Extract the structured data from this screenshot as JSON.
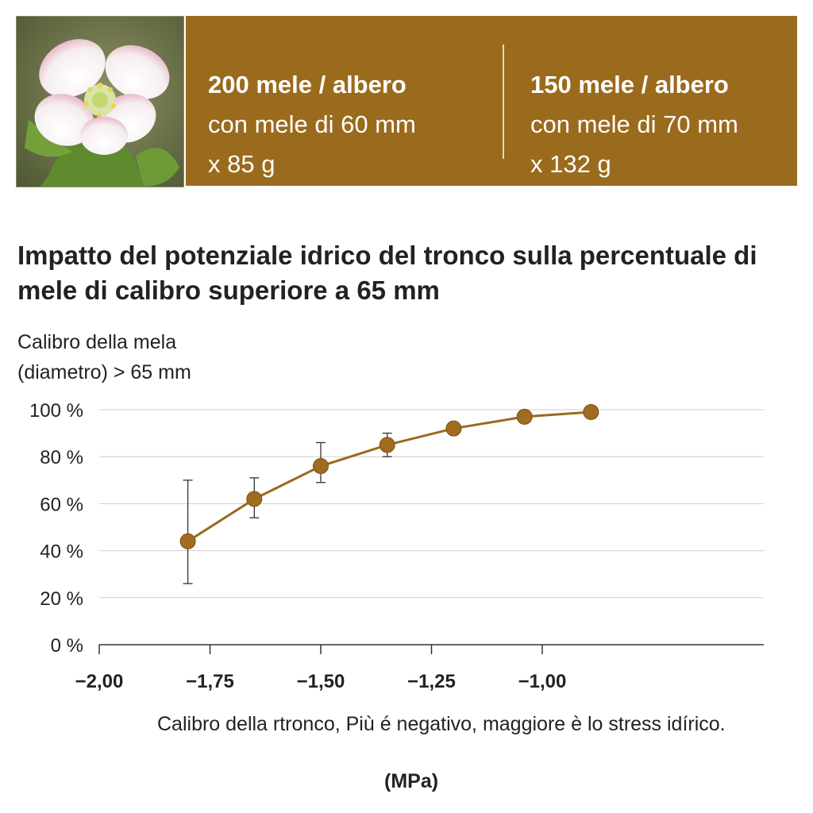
{
  "banner": {
    "left": {
      "headline": "200 mele / albero",
      "line2": "con mele di 60 mm",
      "line3": "x 85 g"
    },
    "right": {
      "headline": "150 mele / albero",
      "line2": "con mele di 70 mm",
      "line3": "x 132 g"
    }
  },
  "colors": {
    "brown": "#9a6a1d",
    "marker": "#a16c1f",
    "grid": "#cfcfcf",
    "axis": "#333333"
  },
  "chart_data": {
    "type": "line",
    "title": "Impatto del potenziale idrico del tronco sulla percentuale di mele di calibro superiore a 65 mm",
    "ylabel_lines": [
      "Calibro della mela",
      "(diametro) > 65 mm"
    ],
    "xlabel": "Calibro della rtronco, Più é negativo, maggiore è lo stress idírico.",
    "xunit": "(MPa)",
    "xlim": [
      -2.0,
      -0.5
    ],
    "ylim": [
      0,
      100
    ],
    "x_ticks": [
      -2.0,
      -1.75,
      -1.5,
      -1.25,
      -1.0
    ],
    "x_tick_labels": [
      "−2,00",
      "−1,75",
      "−1,50",
      "−1,25",
      "−1,00"
    ],
    "y_ticks": [
      0,
      20,
      40,
      60,
      80,
      100
    ],
    "y_tick_labels": [
      "0 %",
      "20 %",
      "40 %",
      "60 %",
      "80 %",
      "100 %"
    ],
    "grid": true,
    "series": [
      {
        "x": [
          -1.8,
          -1.65,
          -1.5,
          -1.35,
          -1.2,
          -1.04,
          -0.89
        ],
        "y": [
          44,
          62,
          76,
          85,
          92,
          97,
          99
        ],
        "error_low": [
          26,
          54,
          69,
          80,
          null,
          null,
          null
        ],
        "error_high": [
          70,
          71,
          86,
          90,
          null,
          null,
          null
        ]
      }
    ]
  }
}
